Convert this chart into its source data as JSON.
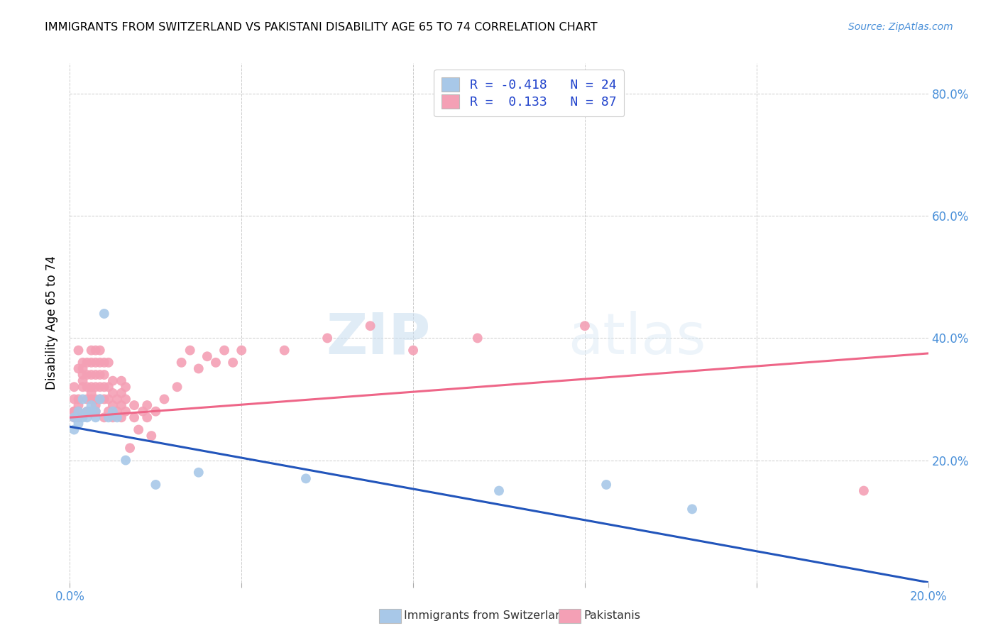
{
  "title": "IMMIGRANTS FROM SWITZERLAND VS PAKISTANI DISABILITY AGE 65 TO 74 CORRELATION CHART",
  "source": "Source: ZipAtlas.com",
  "ylabel": "Disability Age 65 to 74",
  "xlim": [
    0.0,
    0.2
  ],
  "ylim": [
    0.0,
    0.85
  ],
  "swiss_color": "#a8c8e8",
  "pakistani_color": "#f4a0b5",
  "swiss_line_color": "#2255bb",
  "pakistani_line_color": "#ee6688",
  "swiss_R": -0.418,
  "swiss_N": 24,
  "pakistani_R": 0.133,
  "pakistani_N": 87,
  "watermark_zip": "ZIP",
  "watermark_atlas": "atlas",
  "legend_label_swiss": "Immigrants from Switzerland",
  "legend_label_pakistani": "Pakistanis",
  "swiss_x": [
    0.001,
    0.001,
    0.002,
    0.002,
    0.003,
    0.003,
    0.004,
    0.004,
    0.005,
    0.005,
    0.006,
    0.006,
    0.007,
    0.008,
    0.009,
    0.01,
    0.011,
    0.013,
    0.02,
    0.03,
    0.055,
    0.1,
    0.125,
    0.145
  ],
  "swiss_y": [
    0.27,
    0.25,
    0.26,
    0.28,
    0.27,
    0.3,
    0.28,
    0.27,
    0.28,
    0.29,
    0.27,
    0.28,
    0.3,
    0.44,
    0.27,
    0.28,
    0.27,
    0.2,
    0.16,
    0.18,
    0.17,
    0.15,
    0.16,
    0.12
  ],
  "pakistani_x": [
    0.001,
    0.001,
    0.001,
    0.001,
    0.001,
    0.002,
    0.002,
    0.002,
    0.002,
    0.002,
    0.002,
    0.003,
    0.003,
    0.003,
    0.003,
    0.003,
    0.004,
    0.004,
    0.004,
    0.004,
    0.004,
    0.005,
    0.005,
    0.005,
    0.005,
    0.005,
    0.005,
    0.006,
    0.006,
    0.006,
    0.006,
    0.006,
    0.006,
    0.006,
    0.007,
    0.007,
    0.007,
    0.007,
    0.007,
    0.008,
    0.008,
    0.008,
    0.008,
    0.008,
    0.009,
    0.009,
    0.009,
    0.009,
    0.01,
    0.01,
    0.01,
    0.01,
    0.011,
    0.011,
    0.012,
    0.012,
    0.012,
    0.012,
    0.013,
    0.013,
    0.013,
    0.014,
    0.015,
    0.015,
    0.016,
    0.017,
    0.018,
    0.018,
    0.019,
    0.02,
    0.022,
    0.025,
    0.026,
    0.028,
    0.03,
    0.032,
    0.034,
    0.036,
    0.038,
    0.04,
    0.05,
    0.06,
    0.07,
    0.08,
    0.095,
    0.12,
    0.185
  ],
  "pakistani_y": [
    0.28,
    0.27,
    0.28,
    0.3,
    0.32,
    0.27,
    0.28,
    0.29,
    0.3,
    0.35,
    0.38,
    0.35,
    0.34,
    0.32,
    0.33,
    0.36,
    0.28,
    0.3,
    0.32,
    0.34,
    0.36,
    0.3,
    0.31,
    0.32,
    0.34,
    0.36,
    0.38,
    0.28,
    0.29,
    0.3,
    0.32,
    0.34,
    0.36,
    0.38,
    0.3,
    0.32,
    0.34,
    0.36,
    0.38,
    0.27,
    0.3,
    0.32,
    0.34,
    0.36,
    0.28,
    0.3,
    0.32,
    0.36,
    0.27,
    0.29,
    0.31,
    0.33,
    0.28,
    0.3,
    0.27,
    0.29,
    0.31,
    0.33,
    0.28,
    0.3,
    0.32,
    0.22,
    0.27,
    0.29,
    0.25,
    0.28,
    0.27,
    0.29,
    0.24,
    0.28,
    0.3,
    0.32,
    0.36,
    0.38,
    0.35,
    0.37,
    0.36,
    0.38,
    0.36,
    0.38,
    0.38,
    0.4,
    0.42,
    0.38,
    0.4,
    0.42,
    0.15
  ]
}
